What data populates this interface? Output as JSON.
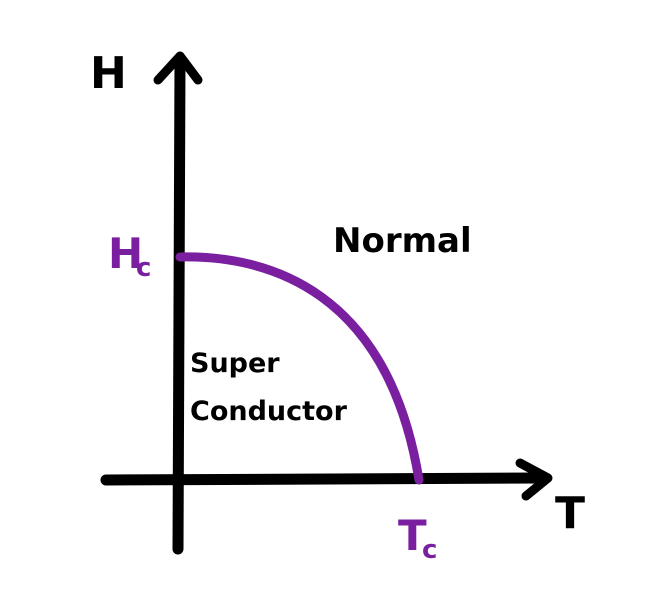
{
  "axes": {
    "y_label": "H",
    "x_label": "T"
  },
  "critical_field": {
    "symbol": "H",
    "subscript": "c"
  },
  "critical_temperature": {
    "symbol": "T",
    "subscript": "c"
  },
  "regions": {
    "normal": "Normal",
    "superconductor_line1": "Super",
    "superconductor_line2": "Conductor"
  },
  "colors": {
    "ink": "#000000",
    "boundary": "#7a1fa0",
    "background": "#ffffff"
  }
}
